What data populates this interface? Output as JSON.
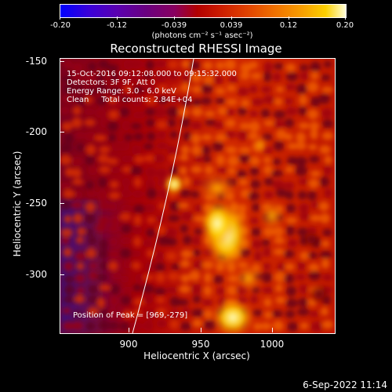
{
  "colorbar": {
    "ticks": [
      "-0.20",
      "-0.12",
      "-0.039",
      "0.039",
      "0.12",
      "0.20"
    ],
    "unit": "(photons cm⁻² s⁻¹ asec⁻²)"
  },
  "title": "Reconstructed RHESSI Image",
  "annotations": {
    "time": "15-Oct-2016 09:12:08.000 to 09:15:32.000",
    "detectors": "Detectors: 3F 9F, Att 0",
    "energy": "Energy Range: 3.0 - 6.0 keV",
    "method": "Clean     Total counts: 2.84E+04",
    "peak": "Position of Peak = [969,-279]"
  },
  "axes": {
    "xlabel": "Heliocentric X (arcsec)",
    "ylabel": "Heliocentric Y (arcsec)",
    "xticks": [
      "900",
      "950",
      "1000"
    ],
    "yticks": [
      "-150",
      "-200",
      "-250",
      "-300"
    ]
  },
  "footer": {
    "date": "6-Sep-2022 11:14"
  },
  "colors": {
    "background": "#000000",
    "text": "#ffffff",
    "limb": "#ffffff"
  }
}
